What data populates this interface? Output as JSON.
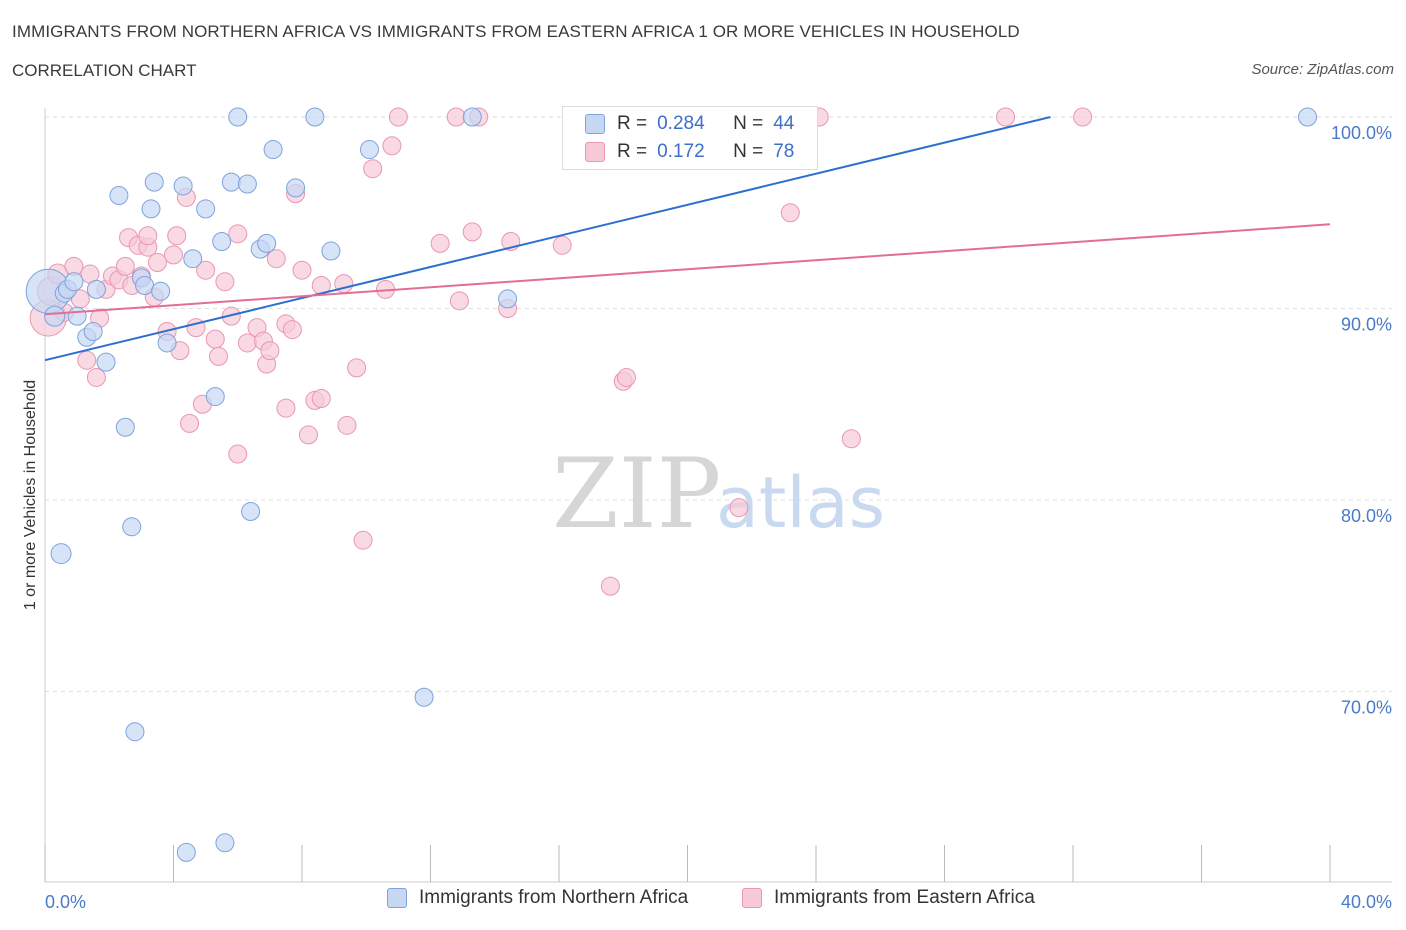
{
  "header": {
    "title": "IMMIGRANTS FROM NORTHERN AFRICA VS IMMIGRANTS FROM EASTERN AFRICA 1 OR MORE VEHICLES IN HOUSEHOLD",
    "subtitle": "CORRELATION CHART",
    "source": "Source: ZipAtlas.com"
  },
  "watermark": {
    "zip": "ZIP",
    "atlas": "atlas"
  },
  "legend": {
    "r_label": "R =",
    "n_label": "N =",
    "rows": [
      {
        "r": "0.284",
        "n": "44"
      },
      {
        "r": "0.172",
        "n": "78"
      }
    ]
  },
  "colors": {
    "blue_fill": "#c6d7f3",
    "blue_stroke": "#7ea3dc",
    "blue_line": "#2d6fcf",
    "pink_fill": "#f7c9d7",
    "pink_stroke": "#e997b2",
    "pink_line": "#e36d97",
    "grid": "#dddddd",
    "tick_text": "#4a7bc8"
  },
  "chart_data": {
    "type": "scatter",
    "title": "IMMIGRANTS FROM NORTHERN AFRICA VS IMMIGRANTS FROM EASTERN AFRICA 1 OR MORE VEHICLES IN HOUSEHOLD",
    "xlabel": "",
    "ylabel": "1 or more Vehicles in Household",
    "xlim": [
      0,
      40
    ],
    "ylim": [
      61,
      101
    ],
    "x_ticks": [
      "0.0%",
      "40.0%"
    ],
    "y_ticks": [
      {
        "value": 100,
        "label": "100.0%"
      },
      {
        "value": 90,
        "label": "90.0%"
      },
      {
        "value": 80,
        "label": "80.0%"
      },
      {
        "value": 70,
        "label": "70.0%"
      }
    ],
    "grid": true,
    "legend_position": "top-center",
    "series": [
      {
        "name": "Immigrants from Northern Africa",
        "color": "#7ea3dc",
        "trend": {
          "x": [
            0,
            31.3
          ],
          "y": [
            87.3,
            100
          ]
        },
        "points": [
          [
            0.1,
            90.9,
            22
          ],
          [
            0.3,
            89.6,
            10
          ],
          [
            0.5,
            77.2,
            10
          ],
          [
            0.6,
            90.8,
            9
          ],
          [
            0.7,
            91.0,
            9
          ],
          [
            0.9,
            91.4,
            9
          ],
          [
            1.0,
            89.6,
            9
          ],
          [
            1.3,
            88.5,
            9
          ],
          [
            1.5,
            88.8,
            9
          ],
          [
            1.6,
            91.0,
            9
          ],
          [
            1.9,
            87.2,
            9
          ],
          [
            2.3,
            95.9,
            9
          ],
          [
            2.5,
            83.8,
            9
          ],
          [
            2.7,
            78.6,
            9
          ],
          [
            2.8,
            67.9,
            9
          ],
          [
            3.0,
            91.6,
            9
          ],
          [
            3.1,
            91.2,
            9
          ],
          [
            3.3,
            95.2,
            9
          ],
          [
            3.4,
            96.6,
            9
          ],
          [
            3.6,
            90.9,
            9
          ],
          [
            3.8,
            88.2,
            9
          ],
          [
            4.3,
            96.4,
            9
          ],
          [
            4.4,
            61.6,
            9
          ],
          [
            4.6,
            92.6,
            9
          ],
          [
            5.0,
            95.2,
            9
          ],
          [
            5.3,
            85.4,
            9
          ],
          [
            5.5,
            93.5,
            9
          ],
          [
            5.6,
            62.1,
            9
          ],
          [
            5.8,
            96.6,
            9
          ],
          [
            6.0,
            100.0,
            9
          ],
          [
            6.3,
            96.5,
            9
          ],
          [
            6.4,
            79.4,
            9
          ],
          [
            6.7,
            93.1,
            9
          ],
          [
            6.9,
            93.4,
            9
          ],
          [
            7.1,
            98.3,
            9
          ],
          [
            7.8,
            96.3,
            9
          ],
          [
            8.4,
            100.0,
            9
          ],
          [
            8.9,
            93.0,
            9
          ],
          [
            10.1,
            98.3,
            9
          ],
          [
            11.8,
            69.7,
            9
          ],
          [
            13.3,
            100.0,
            9
          ],
          [
            14.4,
            90.5,
            9
          ],
          [
            20.4,
            100.0,
            9
          ],
          [
            39.3,
            100.0,
            9
          ]
        ]
      },
      {
        "name": "Immigrants from Eastern Africa",
        "color": "#e997b2",
        "trend": {
          "x": [
            0,
            40
          ],
          "y": [
            89.7,
            94.4
          ]
        },
        "points": [
          [
            0.1,
            89.5,
            18
          ],
          [
            0.2,
            90.9,
            14
          ],
          [
            0.4,
            91.8,
            10
          ],
          [
            0.6,
            89.8,
            9
          ],
          [
            0.9,
            92.2,
            9
          ],
          [
            1.1,
            90.5,
            9
          ],
          [
            1.3,
            87.3,
            9
          ],
          [
            1.4,
            91.8,
            9
          ],
          [
            1.6,
            86.4,
            9
          ],
          [
            1.7,
            89.5,
            9
          ],
          [
            1.9,
            91.0,
            9
          ],
          [
            2.1,
            91.7,
            9
          ],
          [
            2.3,
            91.5,
            9
          ],
          [
            2.5,
            92.2,
            9
          ],
          [
            2.6,
            93.7,
            9
          ],
          [
            2.7,
            91.2,
            9
          ],
          [
            2.9,
            93.3,
            9
          ],
          [
            3.0,
            91.7,
            9
          ],
          [
            3.2,
            93.2,
            9
          ],
          [
            3.2,
            93.8,
            9
          ],
          [
            3.4,
            90.6,
            9
          ],
          [
            3.5,
            92.4,
            9
          ],
          [
            3.8,
            88.8,
            9
          ],
          [
            4.0,
            92.8,
            9
          ],
          [
            4.1,
            93.8,
            9
          ],
          [
            4.2,
            87.8,
            9
          ],
          [
            4.4,
            95.8,
            9
          ],
          [
            4.5,
            84.0,
            9
          ],
          [
            4.7,
            89.0,
            9
          ],
          [
            4.9,
            85.0,
            9
          ],
          [
            5.0,
            92.0,
            9
          ],
          [
            5.3,
            88.4,
            9
          ],
          [
            5.4,
            87.5,
            9
          ],
          [
            5.6,
            91.4,
            9
          ],
          [
            5.8,
            89.6,
            9
          ],
          [
            6.0,
            93.9,
            9
          ],
          [
            6.0,
            82.4,
            9
          ],
          [
            6.3,
            88.2,
            9
          ],
          [
            6.6,
            89.0,
            9
          ],
          [
            6.8,
            88.3,
            9
          ],
          [
            6.9,
            87.1,
            9
          ],
          [
            7.0,
            87.8,
            9
          ],
          [
            7.2,
            92.6,
            9
          ],
          [
            7.5,
            89.2,
            9
          ],
          [
            7.5,
            84.8,
            9
          ],
          [
            7.7,
            88.9,
            9
          ],
          [
            7.8,
            96.0,
            9
          ],
          [
            8.0,
            92.0,
            9
          ],
          [
            8.2,
            83.4,
            9
          ],
          [
            8.4,
            85.2,
            9
          ],
          [
            8.6,
            85.3,
            9
          ],
          [
            8.6,
            91.2,
            9
          ],
          [
            9.3,
            91.3,
            9
          ],
          [
            9.4,
            83.9,
            9
          ],
          [
            9.7,
            86.9,
            9
          ],
          [
            9.9,
            77.9,
            9
          ],
          [
            10.2,
            97.3,
            9
          ],
          [
            10.6,
            91.0,
            9
          ],
          [
            10.8,
            98.5,
            9
          ],
          [
            11.0,
            100.0,
            9
          ],
          [
            12.3,
            93.4,
            9
          ],
          [
            12.8,
            100.0,
            9
          ],
          [
            12.9,
            90.4,
            9
          ],
          [
            13.3,
            94.0,
            9
          ],
          [
            13.5,
            100.0,
            9
          ],
          [
            14.4,
            90.0,
            9
          ],
          [
            14.5,
            93.5,
            9
          ],
          [
            16.1,
            93.3,
            9
          ],
          [
            17.6,
            75.5,
            9
          ],
          [
            18.0,
            86.2,
            9
          ],
          [
            18.1,
            86.4,
            9
          ],
          [
            21.6,
            79.6,
            9
          ],
          [
            23.2,
            95.0,
            9
          ],
          [
            23.5,
            100.0,
            9
          ],
          [
            24.1,
            100.0,
            9
          ],
          [
            25.1,
            83.2,
            9
          ],
          [
            29.9,
            100.0,
            9
          ],
          [
            32.3,
            100.0,
            9
          ]
        ]
      }
    ]
  }
}
